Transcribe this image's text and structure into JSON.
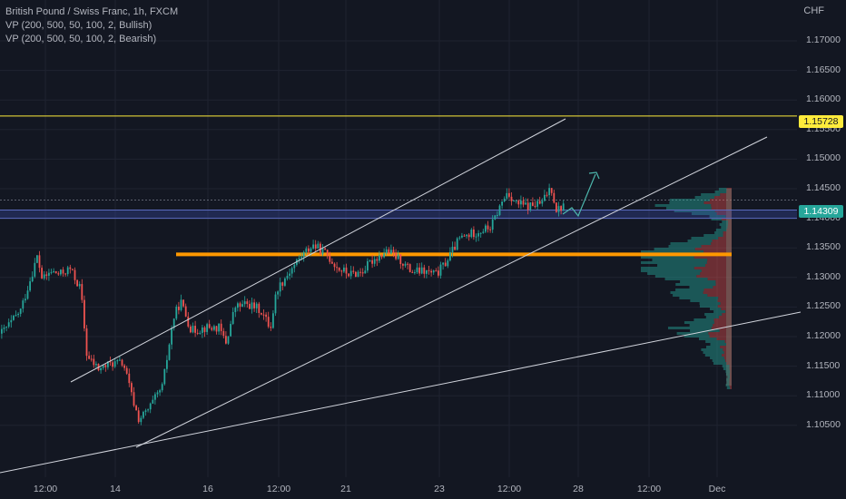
{
  "legend": {
    "title": "British Pound / Swiss Franc, 1h, FXCM",
    "indicator1": "VP (200, 500, 50, 100, 2, Bullish)",
    "indicator2": "VP (200, 500, 50, 100, 2, Bearish)"
  },
  "currency": "CHF",
  "price_axis": {
    "ticks": [
      "1.17000",
      "1.16500",
      "1.16000",
      "1.15500",
      "1.15000",
      "1.14500",
      "1.14000",
      "1.13500",
      "1.13000",
      "1.12500",
      "1.12000",
      "1.11500",
      "1.11000",
      "1.10500"
    ],
    "tick_values": [
      1.17,
      1.165,
      1.16,
      1.155,
      1.15,
      1.145,
      1.14,
      1.135,
      1.13,
      1.125,
      1.12,
      1.115,
      1.11,
      1.105
    ],
    "resistance_label": "1.15728",
    "resistance_value": 1.15728,
    "current_label": "1.14309",
    "current_value": 1.14309
  },
  "time_axis": {
    "ticks": [
      "12:00",
      "14",
      "16",
      "12:00",
      "21",
      "23",
      "12:00",
      "28",
      "12:00",
      "Dec"
    ]
  },
  "colors": {
    "background": "#131722",
    "bull": "#26a69a",
    "bear": "#ef5350",
    "resistance": "#ffeb3b",
    "support_zone": "#ff9800",
    "blue_zone": "#5b6bbf"
  },
  "chart_data": {
    "type": "candlestick",
    "symbol": "GBPCHF",
    "timeframe": "1h",
    "ylim": [
      1.102,
      1.1735
    ],
    "horizontal_levels": [
      {
        "value": 1.15728,
        "color": "#ffeb3b"
      },
      {
        "value": 1.1339,
        "color": "#ff9800"
      },
      {
        "value": 1.14,
        "color": "#5b6bbf"
      },
      {
        "value": 1.1414,
        "color": "#5b6bbf"
      }
    ]
  }
}
